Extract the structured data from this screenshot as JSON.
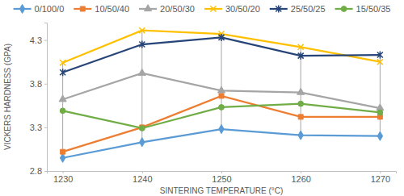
{
  "chart_data": {
    "type": "line",
    "x_label": "SINTERING TEMPERATURE (°C)",
    "y_label": "VICKERS HARDNESS (GPA)",
    "categories": [
      "1230",
      "1240",
      "1250",
      "1260",
      "1270"
    ],
    "series": [
      {
        "name": "0/100/0",
        "color": "#5b9bd5",
        "marker": "diamond",
        "values": [
          2.95,
          3.13,
          3.28,
          3.21,
          3.2
        ]
      },
      {
        "name": "10/50/40",
        "color": "#ed7d31",
        "marker": "square",
        "values": [
          3.02,
          3.3,
          3.66,
          3.42,
          3.42
        ]
      },
      {
        "name": "20/50/30",
        "color": "#a5a5a5",
        "marker": "triangle",
        "values": [
          3.62,
          3.92,
          3.72,
          3.7,
          3.52
        ]
      },
      {
        "name": "30/50/20",
        "color": "#ffc000",
        "marker": "x",
        "values": [
          4.04,
          4.41,
          4.37,
          4.22,
          4.05
        ]
      },
      {
        "name": "25/50/25",
        "color": "#264478",
        "marker": "star",
        "values": [
          3.93,
          4.25,
          4.33,
          4.12,
          4.13
        ]
      },
      {
        "name": "15/50/35",
        "color": "#70ad47",
        "marker": "circle",
        "values": [
          3.49,
          3.29,
          3.53,
          3.57,
          3.47
        ]
      }
    ],
    "ylim": [
      2.8,
      4.5
    ],
    "yticks": [
      2.8,
      3.3,
      3.8,
      4.3
    ],
    "grid": false,
    "legend": "top"
  }
}
